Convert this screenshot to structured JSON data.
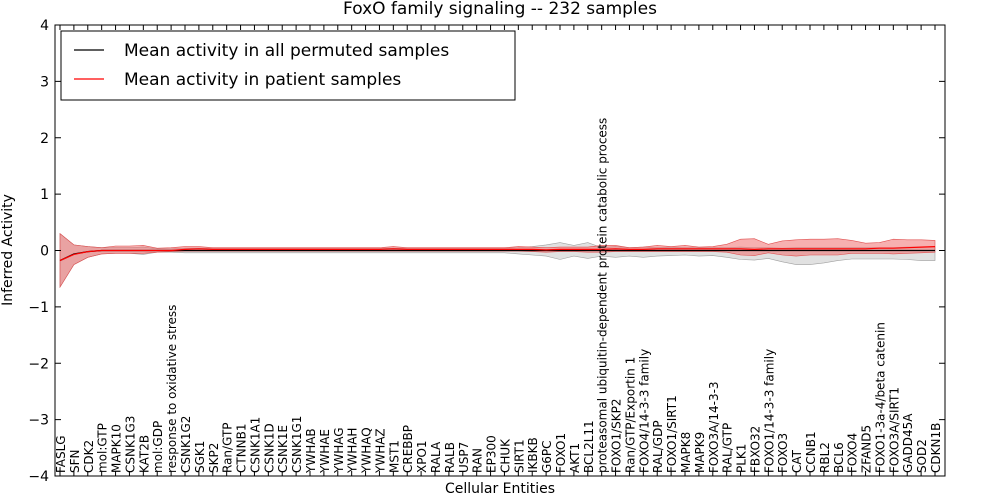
{
  "chart_data": {
    "type": "line",
    "title": "FoxO family signaling -- 232 samples",
    "xlabel": "Cellular Entities",
    "ylabel": "Inferred Activity",
    "ylim": [
      -4,
      4
    ],
    "yticks": [
      -4,
      -3,
      -2,
      -1,
      0,
      1,
      2,
      3,
      4
    ],
    "ytick_labels": [
      "−4",
      "−3",
      "−2",
      "−1",
      "0",
      "1",
      "2",
      "3",
      "4"
    ],
    "legend_position": "top-left",
    "categories": [
      "FASLG",
      "SFN",
      "CDK2",
      "mol:GTP",
      "MAPK10",
      "CSNK1G3",
      "KAT2B",
      "mol:GDP",
      "response to oxidative stress",
      "CSNK1G2",
      "SGK1",
      "SKP2",
      "Ran/GTP",
      "CTNNB1",
      "CSNK1A1",
      "CSNK1D",
      "CSNK1E",
      "CSNK1G1",
      "YWHAB",
      "YWHAE",
      "YWHAG",
      "YWHAH",
      "YWHAQ",
      "YWHAZ",
      "MST1",
      "CREBBP",
      "XPO1",
      "RALA",
      "RALB",
      "USP7",
      "RAN",
      "EP300",
      "CHUK",
      "SIRT1",
      "IKBKB",
      "G6PC",
      "FOXO1",
      "AKT1",
      "BCL2L11",
      "proteasomal ubiquitin-dependent protein catabolic process",
      "FOXO1/SKP2",
      "Ran/GTP/Exportin 1",
      "FOXO4/14-3-3 family",
      "RAL/GDP",
      "FOXO1/SIRT1",
      "MAPK8",
      "MAPK9",
      "FOXO3A/14-3-3",
      "RAL/GTP",
      "PLK1",
      "FBXO32",
      "FOXO1/14-3-3 family",
      "FOXO3",
      "CAT",
      "CCNB1",
      "RBL2",
      "BCL6",
      "FOXO4",
      "ZFAND5",
      "FOXO1-3a-4/beta catenin",
      "FOXO3A/SIRT1",
      "GADD45A",
      "SOD2",
      "CDKN1B"
    ],
    "series": [
      {
        "name": "Mean activity in all permuted samples",
        "color": "#000000",
        "values": [
          -0.18,
          -0.06,
          -0.02,
          0,
          0,
          0,
          0,
          0,
          0,
          0,
          0,
          0,
          0,
          0,
          0,
          0,
          0,
          0,
          0,
          0,
          0,
          0,
          0,
          0,
          0,
          0,
          0,
          0,
          0,
          0,
          0,
          0,
          0,
          0,
          0,
          0,
          0,
          0,
          0,
          0,
          0,
          0,
          0,
          0,
          0,
          0,
          0,
          0,
          0,
          0,
          0,
          0,
          0,
          0,
          0,
          0,
          0,
          0,
          0,
          0,
          0,
          0,
          0,
          0
        ],
        "band_upper": [
          0.3,
          0.1,
          0.07,
          0.05,
          0.05,
          0.05,
          0.06,
          0.03,
          0.03,
          0.04,
          0.04,
          0.04,
          0.04,
          0.04,
          0.04,
          0.04,
          0.04,
          0.04,
          0.04,
          0.04,
          0.04,
          0.04,
          0.04,
          0.04,
          0.04,
          0.04,
          0.04,
          0.04,
          0.04,
          0.04,
          0.04,
          0.04,
          0.04,
          0.05,
          0.07,
          0.1,
          0.14,
          0.09,
          0.14,
          0.05,
          0.07,
          0.05,
          0.06,
          0.05,
          0.06,
          0.05,
          0.05,
          0.05,
          0.05,
          0.06,
          0.05,
          0.05,
          0.04,
          0.05,
          0.05,
          0.05,
          0.05,
          0.05,
          0.05,
          0.05,
          0.05,
          0.06,
          0.06,
          0.07
        ],
        "band_lower": [
          -0.65,
          -0.25,
          -0.12,
          -0.06,
          -0.05,
          -0.05,
          -0.07,
          -0.03,
          -0.03,
          -0.04,
          -0.04,
          -0.04,
          -0.04,
          -0.04,
          -0.04,
          -0.04,
          -0.04,
          -0.04,
          -0.04,
          -0.04,
          -0.04,
          -0.04,
          -0.04,
          -0.04,
          -0.04,
          -0.04,
          -0.04,
          -0.04,
          -0.04,
          -0.04,
          -0.04,
          -0.04,
          -0.04,
          -0.06,
          -0.08,
          -0.1,
          -0.16,
          -0.1,
          -0.14,
          -0.1,
          -0.12,
          -0.1,
          -0.12,
          -0.1,
          -0.09,
          -0.08,
          -0.1,
          -0.09,
          -0.12,
          -0.16,
          -0.17,
          -0.14,
          -0.2,
          -0.25,
          -0.25,
          -0.22,
          -0.18,
          -0.15,
          -0.15,
          -0.15,
          -0.15,
          -0.16,
          -0.18,
          -0.18
        ]
      },
      {
        "name": "Mean activity in patient samples",
        "color": "#ff0000",
        "values": [
          -0.18,
          -0.07,
          -0.02,
          0,
          0,
          0,
          0,
          0,
          0,
          0.02,
          0.03,
          0.02,
          0.02,
          0.02,
          0.02,
          0.02,
          0.02,
          0.02,
          0.02,
          0.02,
          0.02,
          0.02,
          0.02,
          0.02,
          0.03,
          0.02,
          0.02,
          0.02,
          0.02,
          0.02,
          0.02,
          0.02,
          0.02,
          0.02,
          0.02,
          0.01,
          0.02,
          0.02,
          0.02,
          0.02,
          0.03,
          0.02,
          0.02,
          0.03,
          0.03,
          0.03,
          0.03,
          0.03,
          0.03,
          0.03,
          0.02,
          0.03,
          0.03,
          0.03,
          0.03,
          0.03,
          0.03,
          0.03,
          0.03,
          0.04,
          0.04,
          0.05,
          0.06,
          0.07
        ],
        "band_upper": [
          0.3,
          0.1,
          0.07,
          0.05,
          0.08,
          0.08,
          0.09,
          0.04,
          0.05,
          0.07,
          0.07,
          0.05,
          0.05,
          0.05,
          0.05,
          0.05,
          0.05,
          0.05,
          0.05,
          0.05,
          0.05,
          0.05,
          0.05,
          0.05,
          0.07,
          0.05,
          0.05,
          0.05,
          0.05,
          0.05,
          0.05,
          0.05,
          0.05,
          0.07,
          0.06,
          0.05,
          0.06,
          0.06,
          0.06,
          0.09,
          0.09,
          0.05,
          0.06,
          0.09,
          0.07,
          0.09,
          0.06,
          0.07,
          0.11,
          0.2,
          0.21,
          0.11,
          0.17,
          0.19,
          0.2,
          0.2,
          0.21,
          0.18,
          0.13,
          0.14,
          0.2,
          0.19,
          0.19,
          0.18
        ],
        "band_lower": [
          -0.65,
          -0.25,
          -0.12,
          -0.06,
          -0.05,
          -0.05,
          -0.05,
          -0.03,
          -0.02,
          -0.01,
          -0.01,
          -0.01,
          -0.01,
          -0.01,
          -0.01,
          -0.01,
          -0.01,
          -0.01,
          -0.01,
          -0.01,
          -0.01,
          -0.01,
          -0.01,
          -0.01,
          -0.01,
          -0.01,
          -0.01,
          -0.01,
          -0.01,
          -0.01,
          -0.01,
          -0.01,
          -0.01,
          -0.01,
          -0.02,
          -0.03,
          -0.02,
          -0.02,
          -0.03,
          -0.03,
          -0.02,
          -0.02,
          -0.02,
          -0.02,
          -0.02,
          -0.02,
          -0.02,
          -0.02,
          -0.03,
          -0.08,
          -0.09,
          -0.04,
          -0.08,
          -0.1,
          -0.08,
          -0.08,
          -0.08,
          -0.05,
          -0.05,
          -0.05,
          -0.06,
          -0.05,
          -0.04,
          -0.03
        ]
      }
    ]
  }
}
